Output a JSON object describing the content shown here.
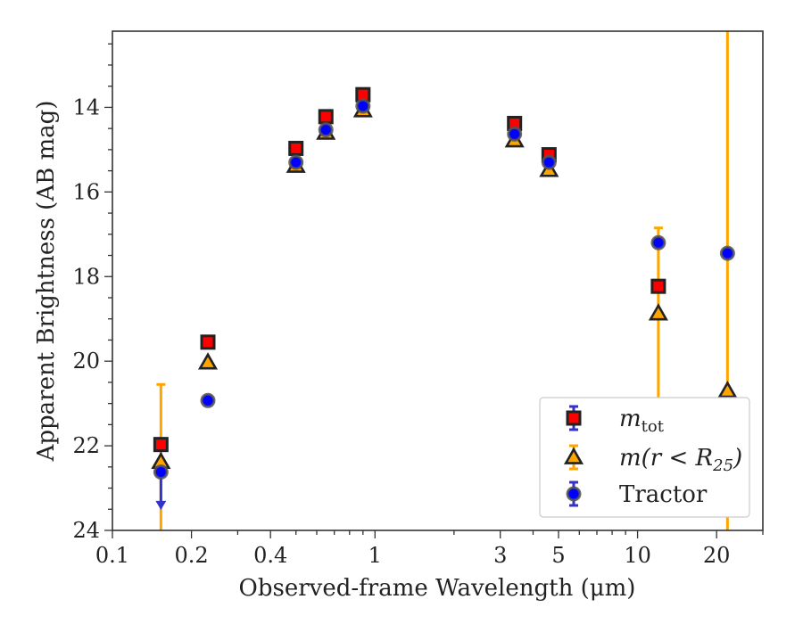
{
  "chart_data": {
    "type": "scatter",
    "xlabel": "Observed-frame Wavelength (μm)",
    "ylabel": "Apparent Brightness (AB mag)",
    "x_scale": "log",
    "xlim": [
      0.1,
      30
    ],
    "ylim": [
      24,
      12.2
    ],
    "y_inverted": true,
    "x_ticks": [
      0.1,
      0.2,
      0.4,
      1,
      3,
      5,
      10,
      20
    ],
    "x_tick_labels": [
      "0.1",
      "0.2",
      "0.4",
      "1",
      "3",
      "5",
      "10",
      "20"
    ],
    "y_ticks": [
      14,
      16,
      18,
      20,
      22,
      24
    ],
    "y_tick_labels": [
      "14",
      "16",
      "18",
      "20",
      "22",
      "24"
    ],
    "legend_position": "lower-right",
    "series": [
      {
        "name": "m_tot",
        "legend_main": "m",
        "legend_sub": "tot",
        "marker": "square",
        "color": "#ff0000",
        "ecolor": "#3333cc",
        "points": [
          {
            "x": 0.153,
            "y": 21.97
          },
          {
            "x": 0.231,
            "y": 19.55
          },
          {
            "x": 0.5,
            "y": 14.97
          },
          {
            "x": 0.65,
            "y": 14.22
          },
          {
            "x": 0.9,
            "y": 13.7
          },
          {
            "x": 3.4,
            "y": 14.38
          },
          {
            "x": 4.6,
            "y": 15.12
          },
          {
            "x": 12.0,
            "y": 18.23
          }
        ]
      },
      {
        "name": "m(r < R25)",
        "legend_text": "m(r < R",
        "legend_sub": "25",
        "legend_tail": ")",
        "marker": "triangle",
        "color": "#ffa500",
        "ecolor": "#ffa500",
        "points": [
          {
            "x": 0.153,
            "y": 22.38,
            "yerr_low": 20.55,
            "yerr_high": 24.0
          },
          {
            "x": 0.231,
            "y": 20.03
          },
          {
            "x": 0.5,
            "y": 15.38
          },
          {
            "x": 0.65,
            "y": 14.6
          },
          {
            "x": 0.9,
            "y": 14.07
          },
          {
            "x": 3.4,
            "y": 14.78
          },
          {
            "x": 4.6,
            "y": 15.48
          },
          {
            "x": 12.0,
            "y": 18.87,
            "yerr_low": 16.85,
            "yerr_high": 20.95
          },
          {
            "x": 22.0,
            "y": 20.7,
            "yerr_low": 12.2,
            "yerr_high": 24.0
          }
        ]
      },
      {
        "name": "Tractor",
        "legend_text": "Tractor",
        "marker": "circle",
        "color": "#0000ff",
        "ecolor": "#3333cc",
        "points": [
          {
            "x": 0.153,
            "y": 22.62,
            "upper_limit_to": 23.45
          },
          {
            "x": 0.231,
            "y": 20.93
          },
          {
            "x": 0.5,
            "y": 15.3
          },
          {
            "x": 0.65,
            "y": 14.53
          },
          {
            "x": 0.9,
            "y": 13.97
          },
          {
            "x": 3.4,
            "y": 14.63
          },
          {
            "x": 4.6,
            "y": 15.3
          },
          {
            "x": 12.0,
            "y": 17.2
          },
          {
            "x": 22.0,
            "y": 17.45
          }
        ]
      }
    ]
  }
}
